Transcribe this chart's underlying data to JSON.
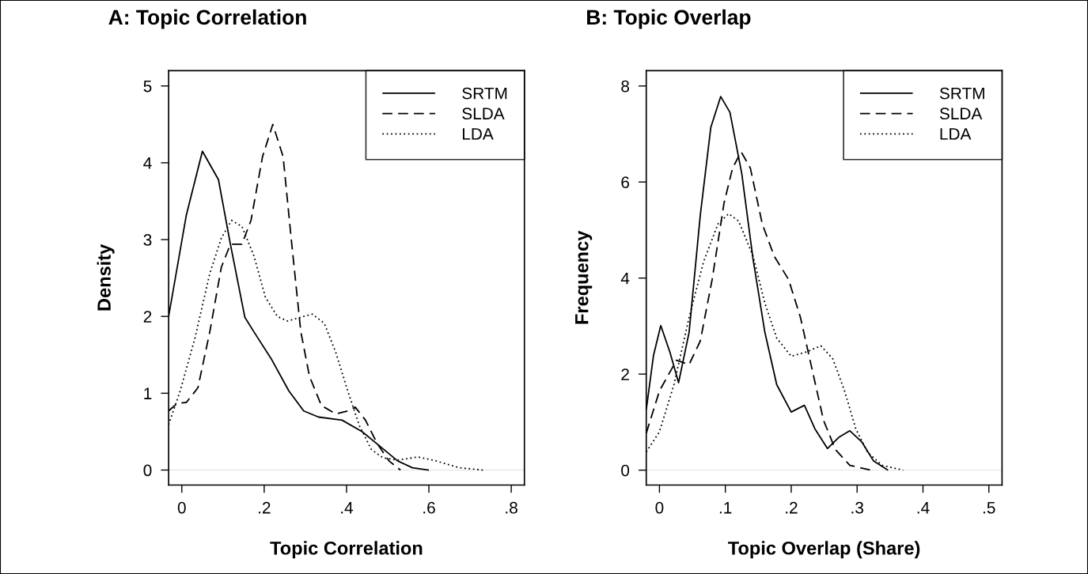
{
  "chart_data": [
    {
      "type": "line",
      "title": "A: Topic Correlation",
      "xlabel": "Topic Correlation",
      "ylabel": "Density",
      "xlim": [
        -0.032,
        0.832
      ],
      "ylim": [
        -0.195,
        5.2
      ],
      "xticks": [
        0,
        {
          "value": 0.2,
          "label": ".2"
        },
        {
          "value": 0.4,
          "label": ".4"
        },
        {
          "value": 0.6,
          "label": ".6"
        },
        {
          "value": 0.8,
          "label": ".8"
        }
      ],
      "yticks": [
        0,
        1,
        2,
        3,
        4,
        5
      ],
      "legend": "top right",
      "ref_lines": [
        {
          "axis": "y",
          "value": 0,
          "color": "#e6e8ee"
        }
      ],
      "series": [
        {
          "name": "SRTM",
          "color": "#000000",
          "line_style": "solid",
          "x": [
            -0.032,
            0.011,
            0.05,
            0.089,
            0.118,
            0.153,
            0.175,
            0.217,
            0.26,
            0.296,
            0.332,
            0.389,
            0.438,
            0.481,
            0.524,
            0.56,
            0.6
          ],
          "values": [
            2.0,
            3.32,
            4.15,
            3.78,
            2.94,
            1.99,
            1.8,
            1.45,
            1.03,
            0.77,
            0.69,
            0.65,
            0.5,
            0.31,
            0.12,
            0.03,
            0
          ]
        },
        {
          "name": "SLDA",
          "color": "#000000",
          "line_style": "dashed",
          "x": [
            -0.032,
            -0.011,
            0.011,
            0.039,
            0.068,
            0.096,
            0.118,
            0.146,
            0.168,
            0.196,
            0.221,
            0.246,
            0.267,
            0.289,
            0.31,
            0.339,
            0.374,
            0.403,
            0.421,
            0.446,
            0.474,
            0.503,
            0.531
          ],
          "values": [
            0.77,
            0.87,
            0.88,
            1.07,
            1.8,
            2.64,
            2.94,
            2.94,
            3.25,
            4.08,
            4.5,
            4.08,
            2.94,
            1.8,
            1.22,
            0.84,
            0.73,
            0.77,
            0.82,
            0.65,
            0.35,
            0.12,
            0
          ]
        },
        {
          "name": "LDA",
          "color": "#000000",
          "line_style": "dotted",
          "x": [
            -0.032,
            -0.004,
            0.032,
            0.068,
            0.096,
            0.121,
            0.146,
            0.175,
            0.203,
            0.232,
            0.257,
            0.289,
            0.317,
            0.346,
            0.374,
            0.403,
            0.431,
            0.46,
            0.488,
            0.524,
            0.574,
            0.617,
            0.674,
            0.731
          ],
          "values": [
            0.59,
            1.03,
            1.72,
            2.56,
            3.02,
            3.25,
            3.17,
            2.79,
            2.25,
            2.0,
            1.94,
            1.99,
            2.03,
            1.91,
            1.53,
            1.03,
            0.58,
            0.27,
            0.16,
            0.13,
            0.17,
            0.12,
            0.03,
            0
          ]
        }
      ]
    },
    {
      "type": "line",
      "title": "B: Topic Overlap",
      "xlabel": "Topic Overlap (Share)",
      "ylabel": "Frequency",
      "xlim": [
        -0.02,
        0.52
      ],
      "ylim": [
        -0.31,
        8.32
      ],
      "xticks": [
        0,
        {
          "value": 0.1,
          "label": ".1"
        },
        {
          "value": 0.2,
          "label": ".2"
        },
        {
          "value": 0.3,
          "label": ".3"
        },
        {
          "value": 0.4,
          "label": ".4"
        },
        {
          "value": 0.5,
          "label": ".5"
        }
      ],
      "yticks": [
        0,
        2,
        4,
        6,
        8
      ],
      "legend": "top right",
      "ref_lines": [
        {
          "axis": "y",
          "value": 0,
          "color": "#e6e8ee"
        }
      ],
      "series": [
        {
          "name": "SRTM",
          "color": "#000000",
          "line_style": "solid",
          "x": [
            -0.02,
            -0.009,
            0.002,
            0.016,
            0.029,
            0.045,
            0.062,
            0.078,
            0.093,
            0.107,
            0.125,
            0.142,
            0.16,
            0.178,
            0.2,
            0.22,
            0.236,
            0.255,
            0.272,
            0.289,
            0.307,
            0.325,
            0.347
          ],
          "values": [
            1.26,
            2.39,
            3.01,
            2.45,
            1.82,
            2.87,
            5.31,
            7.14,
            7.78,
            7.45,
            6.17,
            4.4,
            2.87,
            1.78,
            1.21,
            1.35,
            0.86,
            0.45,
            0.68,
            0.82,
            0.59,
            0.19,
            0
          ]
        },
        {
          "name": "SLDA",
          "color": "#000000",
          "line_style": "dashed",
          "x": [
            -0.02,
            0,
            0.026,
            0.045,
            0.062,
            0.08,
            0.098,
            0.111,
            0.124,
            0.138,
            0.156,
            0.174,
            0.196,
            0.214,
            0.232,
            0.249,
            0.267,
            0.289,
            0.321
          ],
          "values": [
            0.77,
            1.65,
            2.29,
            2.2,
            2.69,
            3.97,
            5.56,
            6.29,
            6.63,
            6.29,
            5.13,
            4.46,
            3.97,
            3.18,
            2.08,
            1.04,
            0.43,
            0.1,
            0
          ]
        },
        {
          "name": "LDA",
          "color": "#000000",
          "line_style": "dotted",
          "x": [
            -0.02,
            0,
            0.022,
            0.045,
            0.067,
            0.089,
            0.105,
            0.12,
            0.142,
            0.16,
            0.178,
            0.2,
            0.223,
            0.245,
            0.263,
            0.281,
            0.298,
            0.316,
            0.338,
            0.37
          ],
          "values": [
            0.38,
            0.8,
            1.78,
            3.18,
            4.34,
            5.13,
            5.34,
            5.19,
            4.46,
            3.48,
            2.75,
            2.37,
            2.46,
            2.59,
            2.32,
            1.65,
            0.86,
            0.37,
            0.1,
            0
          ]
        }
      ]
    }
  ]
}
